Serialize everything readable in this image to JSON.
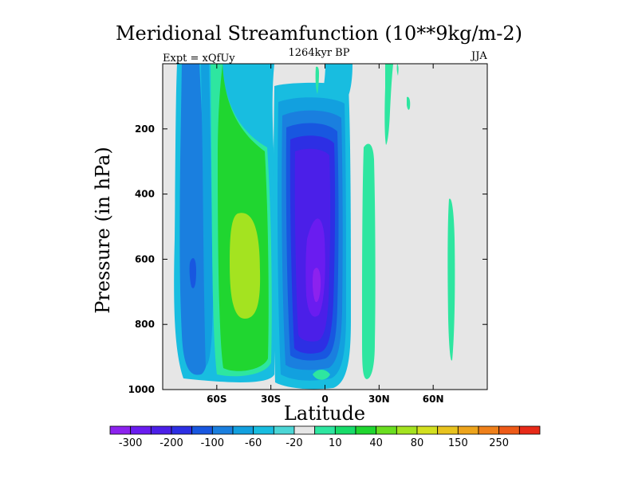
{
  "chart_data": {
    "type": "contour",
    "title": "Meridional Streamfunction (10**9kg/m-2)",
    "subtitle": "1264kyr BP",
    "left_label": "Expt = xQfUy",
    "right_label": "JJA",
    "xlabel": "Latitude",
    "ylabel": "Pressure (in hPa)",
    "x_ticks": [
      {
        "value": -60,
        "label": "60S"
      },
      {
        "value": -30,
        "label": "30S"
      },
      {
        "value": 0,
        "label": "0"
      },
      {
        "value": 30,
        "label": "30N"
      },
      {
        "value": 60,
        "label": "60N"
      }
    ],
    "y_ticks": [
      {
        "value": 200,
        "label": "200"
      },
      {
        "value": 400,
        "label": "400"
      },
      {
        "value": 600,
        "label": "600"
      },
      {
        "value": 800,
        "label": "800"
      },
      {
        "value": 1000,
        "label": "1000"
      }
    ],
    "xlim": [
      -90,
      90
    ],
    "ylim": [
      1000,
      0
    ],
    "colorbar": {
      "levels": [
        "-300",
        "-200",
        "-100",
        "-60",
        "-20",
        "10",
        "40",
        "80",
        "150",
        "250"
      ],
      "colors": [
        "#8c22ee",
        "#6a1cf0",
        "#4b1fe8",
        "#2d2fe4",
        "#1857e0",
        "#1a7fdf",
        "#12a0df",
        "#18bde0",
        "#4cd6d6",
        "#e6e6e6",
        "#2ee6a0",
        "#18dc6a",
        "#20d630",
        "#6ade20",
        "#a4e320",
        "#d3e020",
        "#e8c31e",
        "#eda41c",
        "#ef801a",
        "#ee5a18",
        "#e82a18"
      ]
    },
    "features": [
      {
        "name": "southern-hemisphere-blue-cell",
        "lat_range": [
          -80,
          -64
        ],
        "p_range": [
          0,
          960
        ],
        "max_value": -60
      },
      {
        "name": "southern-green-cell",
        "lat_range": [
          -63,
          -31
        ],
        "p_range": [
          0,
          970
        ],
        "max_value": 80
      },
      {
        "name": "tropical-purple-cell",
        "lat_range": [
          -30,
          16
        ],
        "p_range": [
          90,
          990
        ],
        "min_value": -200
      },
      {
        "name": "northern-green-strip",
        "lat_range": [
          22,
          29
        ],
        "p_range": [
          250,
          960
        ],
        "max_value": 10
      },
      {
        "name": "high-latitude-streak",
        "lat_range": [
          68,
          71
        ],
        "p_range": [
          380,
          900
        ],
        "max_value": 10
      }
    ]
  }
}
